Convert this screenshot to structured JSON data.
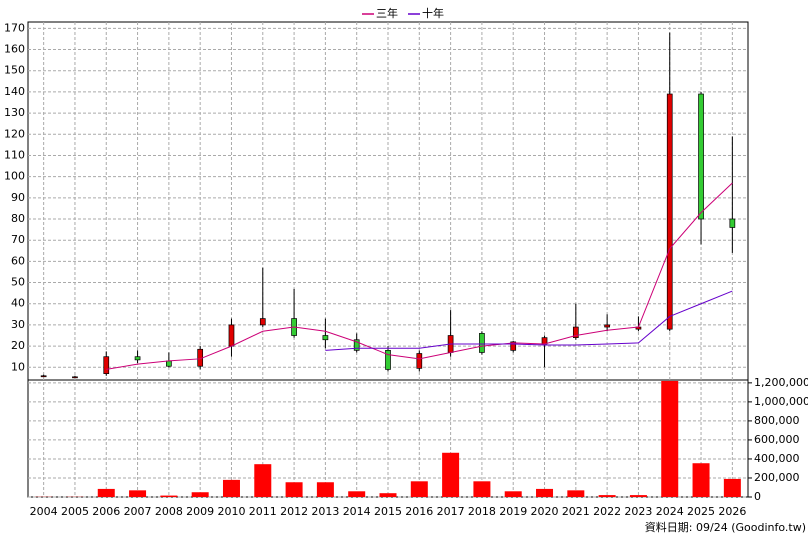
{
  "chart_data": [
    {
      "type": "candlestick",
      "categories": [
        "2004",
        "2005",
        "2006",
        "2007",
        "2008",
        "2009",
        "2010",
        "2011",
        "2012",
        "2013",
        "2014",
        "2015",
        "2016",
        "2017",
        "2018",
        "2019",
        "2020",
        "2021",
        "2022",
        "2023",
        "2024",
        "2025",
        "2026"
      ],
      "open": [
        6,
        5.5,
        7,
        15,
        13,
        10.5,
        20,
        30,
        33,
        25,
        23,
        18,
        9.5,
        17,
        26,
        18,
        21,
        24,
        29,
        28,
        28,
        139,
        80
      ],
      "high": [
        6.5,
        6,
        17.5,
        18,
        17,
        20,
        33,
        57,
        47,
        33,
        26,
        20,
        18,
        37,
        27,
        22.5,
        25,
        40,
        35,
        34,
        168,
        140,
        119
      ],
      "low": [
        5.5,
        5,
        6,
        12,
        10,
        9,
        15,
        29,
        24,
        19,
        17,
        8,
        8,
        15,
        16,
        17,
        10,
        23,
        27,
        27,
        27,
        68,
        64
      ],
      "close": [
        6,
        5.5,
        15,
        13.5,
        10.5,
        18.5,
        30,
        33,
        25,
        23,
        18,
        9,
        16.5,
        25,
        17,
        22,
        24,
        29,
        30,
        29,
        139,
        80,
        76
      ],
      "up_color": "#e00000",
      "down_color": "#33cc33",
      "series": [
        {
          "name": "三年",
          "color": "#cc0077",
          "values": [
            null,
            null,
            9,
            11.5,
            13,
            14,
            20,
            27,
            29,
            27,
            22,
            16,
            14,
            17,
            20,
            21.5,
            21,
            25,
            27.5,
            29,
            66,
            83,
            97
          ]
        },
        {
          "name": "十年",
          "color": "#6600cc",
          "values": [
            null,
            null,
            null,
            null,
            null,
            null,
            null,
            null,
            null,
            18,
            19,
            19,
            19,
            21,
            21,
            21,
            20.5,
            20.5,
            21,
            21.5,
            34,
            40,
            46
          ]
        }
      ],
      "ylim": [
        4,
        173
      ],
      "yticks": [
        10,
        20,
        30,
        40,
        50,
        60,
        70,
        80,
        90,
        100,
        110,
        120,
        130,
        140,
        150,
        160,
        170
      ],
      "grid": true
    },
    {
      "type": "bar",
      "values": [
        2000,
        2000,
        85000,
        70000,
        15000,
        50000,
        180000,
        345000,
        155000,
        155000,
        60000,
        40000,
        165000,
        465000,
        165000,
        60000,
        85000,
        70000,
        20000,
        20000,
        1220000,
        355000,
        190000
      ],
      "color": "#ff0000",
      "ylim": [
        0,
        1230000
      ],
      "yticks": [
        {
          "value": 0,
          "label": "0"
        },
        {
          "value": 200000,
          "label": "200,000"
        },
        {
          "value": 400000,
          "label": "400,000"
        },
        {
          "value": 600000,
          "label": "600,000"
        },
        {
          "value": 800000,
          "label": "800,000"
        },
        {
          "value": 1000000,
          "label": "1,000,000"
        },
        {
          "value": 1200000,
          "label": "1,200,000"
        }
      ],
      "grid": true
    }
  ],
  "footer": "資料日期: 09/24 (Goodinfo.tw)"
}
